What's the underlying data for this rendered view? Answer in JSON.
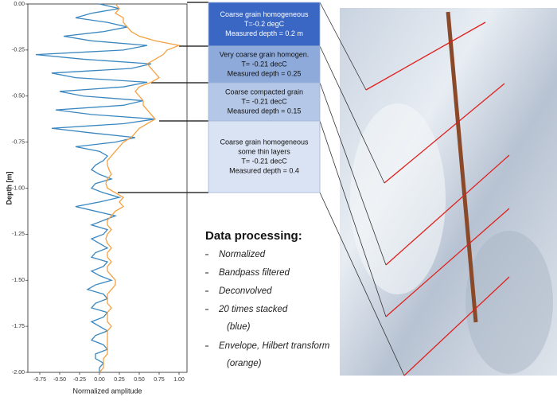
{
  "chart_data": {
    "type": "line",
    "orientation": "vertical",
    "x_label": "Depth [m]",
    "y_label": "Normalized amplitude",
    "x": [
      0,
      -0.025,
      -0.05,
      -0.075,
      -0.1,
      -0.125,
      -0.15,
      -0.175,
      -0.2,
      -0.225,
      -0.25,
      -0.275,
      -0.3,
      -0.325,
      -0.35,
      -0.375,
      -0.4,
      -0.425,
      -0.45,
      -0.475,
      -0.5,
      -0.525,
      -0.55,
      -0.575,
      -0.6,
      -0.625,
      -0.65,
      -0.675,
      -0.7,
      -0.725,
      -0.75,
      -0.775,
      -0.8,
      -0.825,
      -0.85,
      -0.875,
      -0.9,
      -0.925,
      -0.95,
      -0.975,
      -1.0,
      -1.025,
      -1.05,
      -1.075,
      -1.1,
      -1.125,
      -1.15,
      -1.175,
      -1.2,
      -1.225,
      -1.25,
      -1.275,
      -1.3,
      -1.325,
      -1.35,
      -1.375,
      -1.4,
      -1.425,
      -1.45,
      -1.475,
      -1.5,
      -1.525,
      -1.55,
      -1.575,
      -1.6,
      -1.625,
      -1.65,
      -1.675,
      -1.7,
      -1.725,
      -1.75,
      -1.775,
      -1.8,
      -1.825,
      -1.85,
      -1.875,
      -1.9,
      -1.925,
      -1.95,
      -1.975,
      -2.0
    ],
    "xlim": [
      0,
      -2.0
    ],
    "xticks": [
      {
        "value": 0,
        "label": "0.00"
      },
      -0.25,
      {
        "value": -0.5,
        "label": "-0.50"
      },
      -0.75,
      {
        "value": -1.0,
        "label": "-1.00"
      },
      -1.25,
      {
        "value": -1.5,
        "label": "-1.50"
      },
      -1.75,
      {
        "value": -2.0,
        "label": "-2.00"
      }
    ],
    "ylim": [
      -0.9,
      1.1
    ],
    "yticks": [
      -0.75,
      {
        "value": -0.5,
        "label": "-0.50"
      },
      -0.25,
      {
        "value": 0,
        "label": "0.00"
      },
      0.25,
      {
        "value": 0.5,
        "label": "0.50"
      },
      0.75,
      {
        "value": 1.0,
        "label": "1.00"
      }
    ],
    "series": [
      {
        "color": "#3a87c0",
        "values": [
          0.0,
          0.25,
          -0.1,
          -0.3,
          0.1,
          0.35,
          0.05,
          -0.45,
          -0.1,
          0.6,
          0.3,
          -0.8,
          -0.2,
          0.65,
          0.4,
          -0.6,
          -0.3,
          0.6,
          0.3,
          -0.5,
          -0.2,
          0.55,
          0.3,
          -0.55,
          -0.1,
          0.7,
          0.3,
          -0.6,
          -0.1,
          0.45,
          0.2,
          -0.3,
          0.0,
          0.1,
          0.05,
          -0.05,
          -0.1,
          0.0,
          0.15,
          -0.05,
          -0.1,
          0.05,
          0.25,
          0.0,
          -0.3,
          -0.05,
          0.2,
          0.05,
          -0.1,
          0.1,
          0.05,
          -0.1,
          0.0,
          0.1,
          -0.05,
          -0.1,
          0.1,
          0.05,
          -0.1,
          0.0,
          0.15,
          -0.05,
          -0.15,
          0.05,
          0.1,
          -0.05,
          -0.1,
          0.1,
          0.05,
          -0.1,
          0.0,
          0.1,
          -0.05,
          -0.1,
          0.05,
          0.1,
          -0.05,
          -0.05,
          0.05,
          0.0,
          0.0
        ]
      },
      {
        "color": "#f5a142",
        "values": [
          0.2,
          0.25,
          0.2,
          0.3,
          0.3,
          0.35,
          0.4,
          0.5,
          0.7,
          1.0,
          0.85,
          0.8,
          0.7,
          0.6,
          0.65,
          0.7,
          0.75,
          0.65,
          0.5,
          0.45,
          0.5,
          0.55,
          0.55,
          0.6,
          0.65,
          0.7,
          0.6,
          0.5,
          0.45,
          0.4,
          0.3,
          0.25,
          0.2,
          0.15,
          0.1,
          0.1,
          0.12,
          0.15,
          0.1,
          0.08,
          0.1,
          0.2,
          0.3,
          0.25,
          0.3,
          0.2,
          0.15,
          0.1,
          0.1,
          0.15,
          0.1,
          0.08,
          0.1,
          0.15,
          0.1,
          0.1,
          0.15,
          0.1,
          0.1,
          0.15,
          0.2,
          0.2,
          0.15,
          0.1,
          0.1,
          0.1,
          0.15,
          0.1,
          0.1,
          0.1,
          0.15,
          0.1,
          0.1,
          0.1,
          0.1,
          0.1,
          0.1,
          0.05,
          0.05,
          0.05,
          0.0
        ]
      }
    ]
  },
  "layers": [
    {
      "lines": [
        "Coarse grain homogeneous",
        "T=-0.2 degC",
        "Measured depth = 0.2 m"
      ],
      "color": "#3a66c4"
    },
    {
      "lines": [
        "Very coarse grain homogen.",
        "T= -0.21 decC",
        "Measured depth = 0.25"
      ],
      "color": "#8eaadb"
    },
    {
      "lines": [
        "Coarse compacted grain",
        "T= -0.21 decC",
        "Measured depth = 0.15"
      ],
      "color": "#b4c7e7"
    },
    {
      "lines": [
        "Coarse grain homogeneous",
        "some thin layers",
        "T= -0.21 decC",
        "Measured depth = 0.4"
      ],
      "color": "#dae3f3"
    }
  ],
  "processing": {
    "title": "Data processing:",
    "items": [
      {
        "text": "Normalized"
      },
      {
        "text": "Bandpass filtered"
      },
      {
        "text": "Deconvolved"
      },
      {
        "text": "20 times stacked",
        "note": "(blue)",
        "note_color": "#3a87c0"
      },
      {
        "text": "Envelope, Hilbert transform",
        "note": "(orange)",
        "note_color": "#f5a142"
      }
    ]
  }
}
